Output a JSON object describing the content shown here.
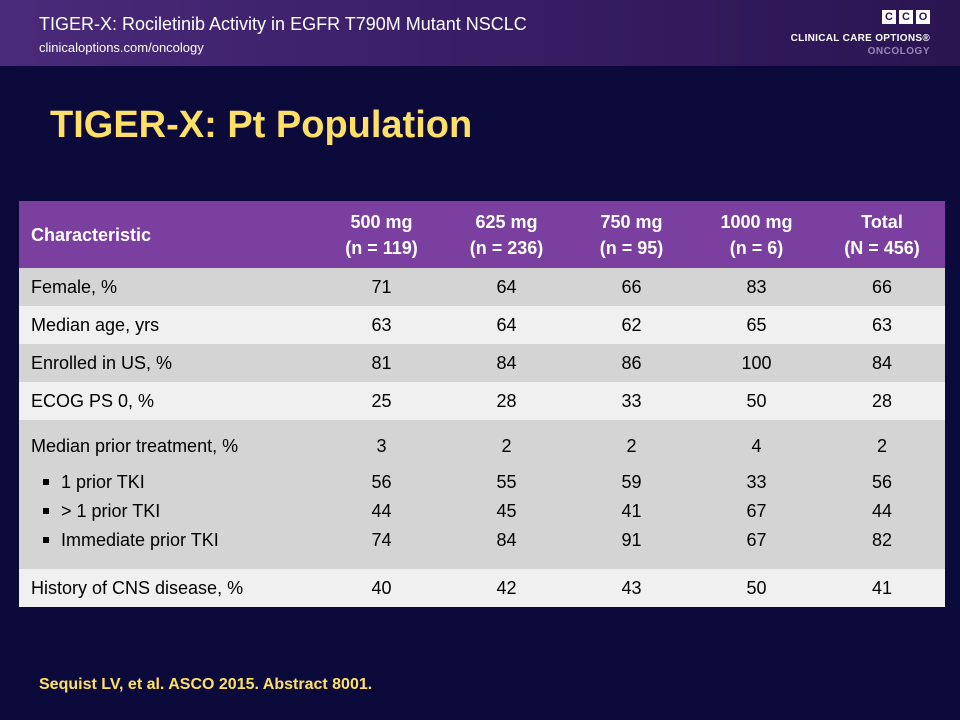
{
  "header": {
    "title": "TIGER-X: Rociletinib Activity in EGFR T790M Mutant NSCLC",
    "url": "clinicaloptions.com/oncology",
    "logo": {
      "letters": [
        "C",
        "C",
        "O"
      ],
      "line1": "CLINICAL CARE OPTIONS®",
      "line2": "ONCOLOGY"
    }
  },
  "slide_title": "TIGER-X: Pt Population",
  "table": {
    "header": {
      "characteristic": "Characteristic",
      "columns": [
        {
          "dose": "500 mg",
          "n": "(n = 119)"
        },
        {
          "dose": "625 mg",
          "n": "(n = 236)"
        },
        {
          "dose": "750 mg",
          "n": "(n = 95)"
        },
        {
          "dose": "1000 mg",
          "n": "(n = 6)"
        },
        {
          "dose": "Total",
          "n": "(N = 456)"
        }
      ]
    },
    "rows": [
      {
        "label": "Female, %",
        "values": [
          "71",
          "64",
          "66",
          "83",
          "66"
        ]
      },
      {
        "label": "Median age, yrs",
        "values": [
          "63",
          "64",
          "62",
          "65",
          "63"
        ]
      },
      {
        "label": "Enrolled in US, %",
        "values": [
          "81",
          "84",
          "86",
          "100",
          "84"
        ]
      },
      {
        "label": "ECOG PS 0, %",
        "values": [
          "25",
          "28",
          "33",
          "50",
          "28"
        ]
      }
    ],
    "prior_treatment": {
      "label": "Median prior treatment, %",
      "values": [
        "3",
        "2",
        "2",
        "4",
        "2"
      ],
      "subrows": [
        {
          "label": "1 prior TKI",
          "values": [
            "56",
            "55",
            "59",
            "33",
            "56"
          ]
        },
        {
          "label": "> 1 prior TKI",
          "values": [
            "44",
            "45",
            "41",
            "67",
            "44"
          ]
        },
        {
          "label": "Immediate prior TKI",
          "values": [
            "74",
            "84",
            "91",
            "67",
            "82"
          ]
        }
      ]
    },
    "cns": {
      "label": "History of CNS disease, %",
      "values": [
        "40",
        "42",
        "43",
        "50",
        "41"
      ]
    }
  },
  "footer": "Sequist LV, et al. ASCO 2015. Abstract 8001.",
  "colors": {
    "background": "#0b0a3a",
    "header_band": "#3a1f68",
    "title_yellow": "#ffe066",
    "table_header": "#7b3fa0",
    "row_dark": "#d4d4d4",
    "row_light": "#f0f0f0"
  }
}
